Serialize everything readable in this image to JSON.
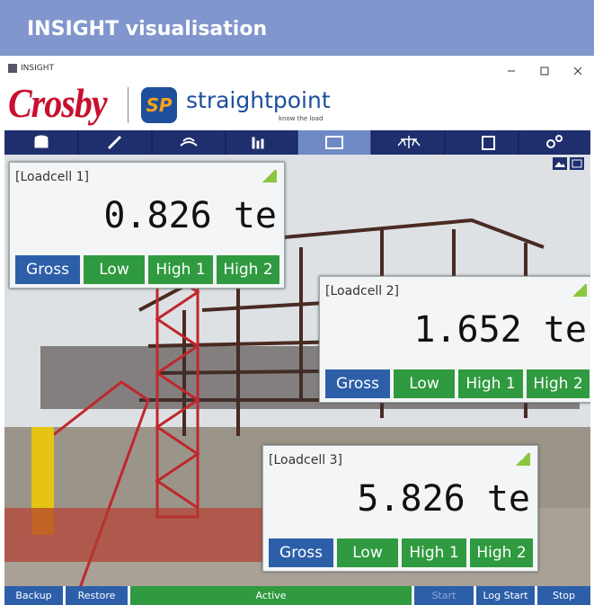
{
  "header": {
    "title": "INSIGHT visualisation"
  },
  "window": {
    "title": "INSIGHT"
  },
  "logos": {
    "crosby": "Crosby",
    "icon": "SP",
    "brand": "straightpoint",
    "tagline": "know the load"
  },
  "loadcells": [
    {
      "label": "[Loadcell 1]",
      "reading": "0.826 te",
      "buttons": [
        "Gross",
        "Low",
        "High 1",
        "High 2"
      ]
    },
    {
      "label": "[Loadcell 2]",
      "reading": "1.652 te",
      "buttons": [
        "Gross",
        "Low",
        "High 1",
        "High 2"
      ]
    },
    {
      "label": "[Loadcell 3]",
      "reading": "5.826 te",
      "buttons": [
        "Gross",
        "Low",
        "High 1",
        "High 2"
      ]
    }
  ],
  "footer": {
    "buttons": [
      "Backup",
      "Restore",
      "Active",
      "Start",
      "Log Start",
      "Stop"
    ]
  }
}
